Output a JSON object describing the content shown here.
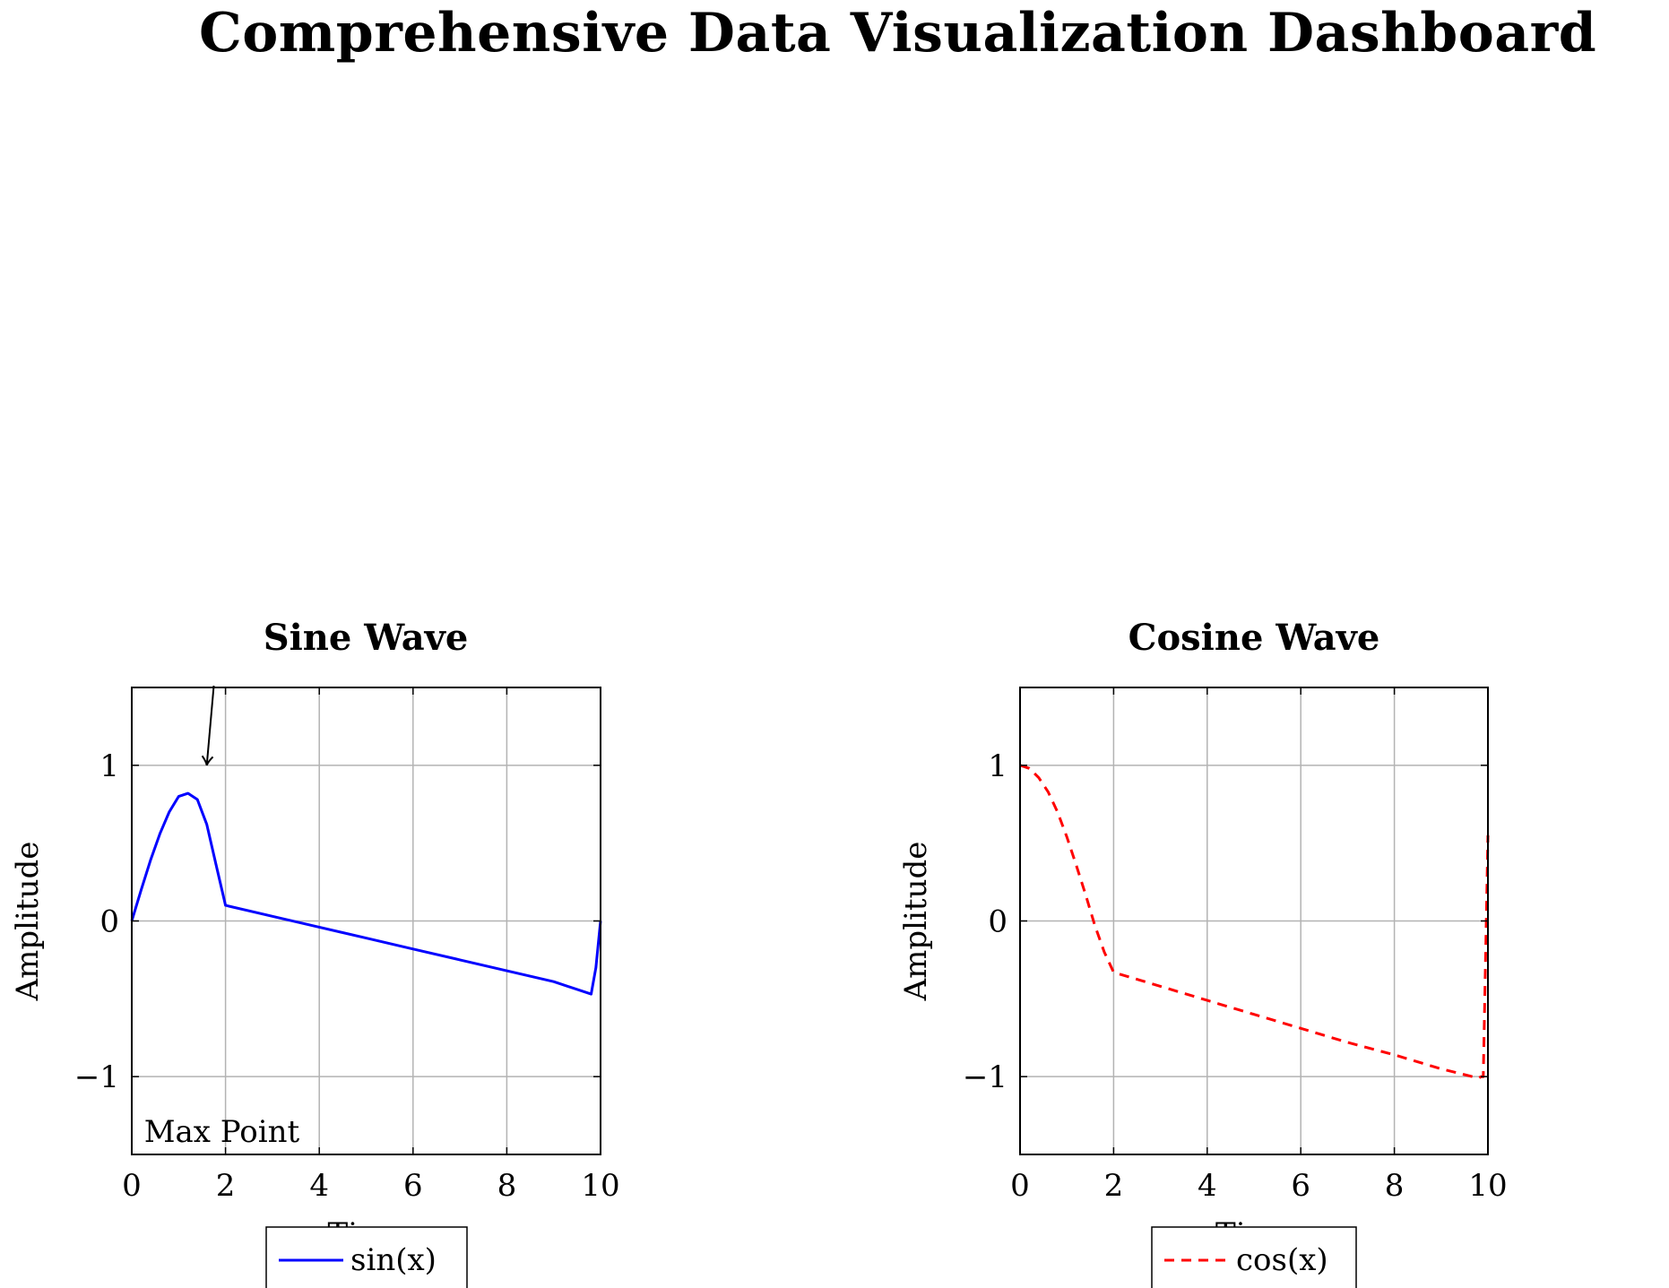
{
  "page": {
    "title": "Comprehensive Data Visualization Dashboard"
  },
  "chart_data": [
    {
      "type": "line",
      "title": "Sine Wave",
      "xlabel": "Time",
      "ylabel": "Amplitude",
      "xlim": [
        0,
        10
      ],
      "ylim": [
        -1.5,
        1.5
      ],
      "xticks": [
        0,
        2,
        4,
        6,
        8,
        10
      ],
      "yticks": [
        -1,
        0,
        1
      ],
      "grid": true,
      "legend_position": "bottom-center",
      "series": [
        {
          "name": "sin(x)",
          "color": "#0000ff",
          "dash": "solid",
          "x": [
            0,
            0.2,
            0.4,
            0.6,
            0.8,
            1.0,
            1.2,
            1.4,
            1.6,
            1.8,
            2.0,
            3.0,
            4.0,
            5.0,
            6.0,
            7.0,
            8.0,
            9.0,
            9.8,
            9.9,
            10.0
          ],
          "y": [
            0,
            0.2,
            0.39,
            0.56,
            0.7,
            0.8,
            0.82,
            0.78,
            0.62,
            0.36,
            0.1,
            0.03,
            -0.04,
            -0.11,
            -0.18,
            -0.25,
            -0.32,
            -0.39,
            -0.47,
            -0.3,
            0
          ]
        }
      ],
      "annotations": [
        {
          "text": "Max Point",
          "x": 0.3,
          "y": -1.35,
          "arrow_to": [
            1.6,
            1.0
          ],
          "arrow_from": [
            1.75,
            1.5
          ]
        }
      ]
    },
    {
      "type": "line",
      "title": "Cosine Wave",
      "xlabel": "Time",
      "ylabel": "Amplitude",
      "xlim": [
        0,
        10
      ],
      "ylim": [
        -1.5,
        1.5
      ],
      "xticks": [
        0,
        2,
        4,
        6,
        8,
        10
      ],
      "yticks": [
        -1,
        0,
        1
      ],
      "grid": true,
      "legend_position": "bottom-center",
      "series": [
        {
          "name": "cos(x)",
          "color": "#ff0000",
          "dash": "dashed",
          "x": [
            0,
            0.2,
            0.4,
            0.6,
            0.8,
            1.0,
            1.2,
            1.4,
            1.6,
            1.8,
            2.0,
            3.0,
            4.0,
            5.0,
            6.0,
            7.0,
            8.0,
            9.0,
            9.8,
            9.85,
            9.9,
            10.0
          ],
          "y": [
            1.0,
            0.98,
            0.92,
            0.83,
            0.7,
            0.54,
            0.36,
            0.17,
            -0.03,
            -0.2,
            -0.33,
            -0.42,
            -0.51,
            -0.6,
            -0.69,
            -0.78,
            -0.86,
            -0.95,
            -1.01,
            -1.0,
            -1.0,
            0.55
          ]
        }
      ],
      "annotations": []
    }
  ]
}
